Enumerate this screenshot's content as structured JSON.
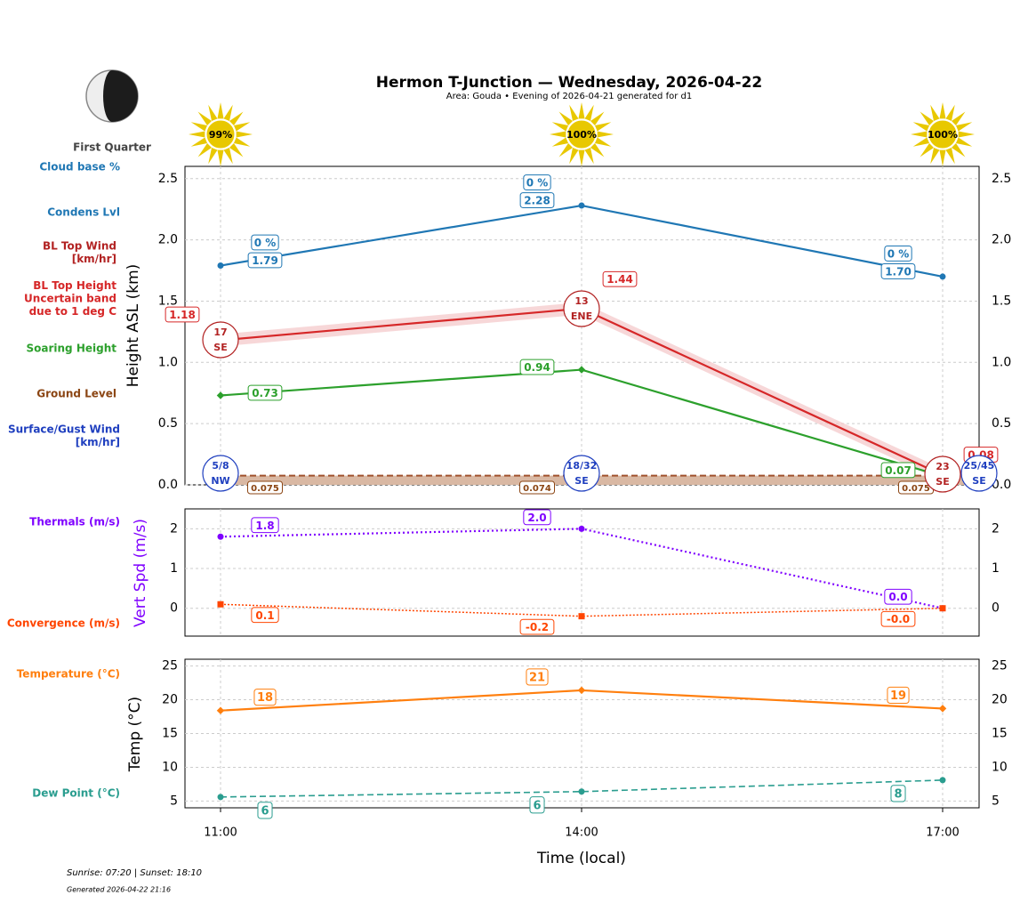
{
  "header": {
    "title": "Hermon T-Junction — Wednesday, 2026-04-22",
    "subtitle": "Area: Gouda • Evening of 2026-04-21 generated for d1",
    "moon_phase": "First Quarter"
  },
  "footer": {
    "sun": "Sunrise: 07:20 | Sunset: 18:10",
    "generated": "Generated 2026-04-22 21:16"
  },
  "row_labels": [
    {
      "text": "Cloud base %",
      "color": "#1f77b4"
    },
    {
      "text": "Condens Lvl",
      "color": "#1f77b4"
    },
    {
      "text": "BL Top Wind\n[km/hr]",
      "color": "#b22222"
    },
    {
      "text": "BL Top Height\nUncertain band\ndue to 1 deg C",
      "color": "#d62728"
    },
    {
      "text": "Soaring Height",
      "color": "#2ca02c"
    },
    {
      "text": "Ground Level",
      "color": "#8b4513"
    },
    {
      "text": "Surface/Gust Wind\n[km/hr]",
      "color": "#1f3fbf"
    },
    {
      "text": "Thermals (m/s)",
      "color": "#7f00ff"
    },
    {
      "text": "Convergence (m/s)",
      "color": "#ff4500"
    },
    {
      "text": "Temperature (°C)",
      "color": "#ff7f0e"
    },
    {
      "text": "Dew Point (°C)",
      "color": "#2a9d8f"
    }
  ],
  "chart_data": [
    {
      "type": "line",
      "ylabel": "Height ASL (km)",
      "ylim": [
        0,
        2.6
      ],
      "yticks": [
        "0.0",
        "0.5",
        "1.0",
        "1.5",
        "2.0",
        "2.5"
      ],
      "grid": true,
      "categories": [
        "11:00",
        "14:00",
        "17:00"
      ],
      "sun_percent": [
        "99%",
        "100%",
        "100%"
      ],
      "cloud_base_pct": [
        "0 %",
        "0 %",
        "0 %"
      ],
      "condens_lvl": [
        1.79,
        2.28,
        1.7
      ],
      "bl_top_height": [
        1.18,
        1.44,
        0.08
      ],
      "bl_band": 0.05,
      "bl_top_wind": [
        {
          "speed": "17",
          "dir": "SE"
        },
        {
          "speed": "13",
          "dir": "ENE"
        },
        {
          "speed": "23",
          "dir": "SE"
        }
      ],
      "soaring_height": [
        0.73,
        0.94,
        0.07
      ],
      "ground_level": [
        0.075,
        0.074,
        0.075
      ],
      "surface_wind": [
        {
          "speed": "5/8",
          "dir": "NW"
        },
        {
          "speed": "18/32",
          "dir": "SE"
        },
        {
          "speed": "25/45",
          "dir": "SE"
        }
      ]
    },
    {
      "type": "line",
      "ylabel": "Vert Spd (m/s)",
      "ylim": [
        -0.7,
        2.5
      ],
      "yticks": [
        "0",
        "1",
        "2"
      ],
      "grid": true,
      "thermals": [
        1.8,
        2.0,
        0.0
      ],
      "thermal_labels": [
        "1.8",
        "2.0",
        "0.0"
      ],
      "convergence": [
        0.1,
        -0.2,
        0.0
      ],
      "convergence_labels": [
        "0.1",
        "-0.2",
        "-0.0"
      ]
    },
    {
      "type": "line",
      "ylabel": "Temp (°C)",
      "xlabel": "Time (local)",
      "ylim": [
        4,
        26
      ],
      "yticks": [
        "5",
        "10",
        "15",
        "20",
        "25"
      ],
      "grid": true,
      "temperature": [
        18.4,
        21.4,
        18.7
      ],
      "temperature_labels": [
        "18",
        "21",
        "19"
      ],
      "dew_point": [
        5.6,
        6.4,
        8.1
      ],
      "dew_labels": [
        "6",
        "6",
        "8"
      ]
    }
  ],
  "colors": {
    "condens": "#1f77b4",
    "bl": "#d62728",
    "bl_wind": "#b22222",
    "soaring": "#2ca02c",
    "ground": "#8b4513",
    "surface_wind": "#1f3fbf",
    "thermals": "#7f00ff",
    "convergence": "#ff4500",
    "temperature": "#ff7f0e",
    "dew": "#2a9d8f",
    "sun": "#e8c800"
  }
}
